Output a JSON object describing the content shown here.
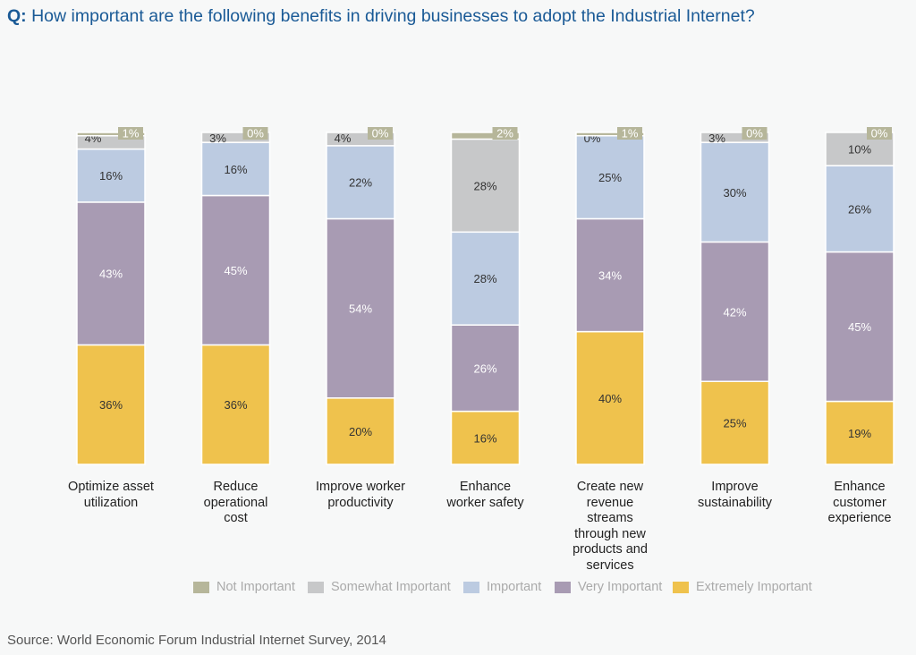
{
  "title": {
    "prefix": "Q:",
    "text": "How important are the following benefits in driving businesses to adopt the Industrial Internet?"
  },
  "source": "Source: World Economic Forum Industrial Internet Survey, 2014",
  "colors": {
    "Not Important": "#b6b69a",
    "Somewhat Important": "#c7c8c9",
    "Important": "#bccbe1",
    "Very Important": "#a89bb3",
    "Extremely Important": "#efc24d"
  },
  "chart_data": {
    "type": "bar",
    "stacked": true,
    "categories": [
      "Optimize asset utilization",
      "Reduce operational cost",
      "Improve worker productivity",
      "Enhance worker safety",
      "Create new revenue streams through new products and services",
      "Improve sustainability",
      "Enhance customer experience"
    ],
    "category_lines": [
      [
        "Optimize asset",
        "utilization"
      ],
      [
        "Reduce",
        "operational",
        "cost"
      ],
      [
        "Improve worker",
        "productivity"
      ],
      [
        "Enhance",
        "worker safety"
      ],
      [
        "Create new",
        "revenue",
        "streams",
        "through new",
        "products and",
        "services"
      ],
      [
        "Improve",
        "sustainability"
      ],
      [
        "Enhance",
        "customer",
        "experience"
      ]
    ],
    "series": [
      {
        "name": "Extremely Important",
        "values": [
          36,
          36,
          20,
          16,
          40,
          25,
          19
        ]
      },
      {
        "name": "Very Important",
        "values": [
          43,
          45,
          54,
          26,
          34,
          42,
          45
        ]
      },
      {
        "name": "Important",
        "values": [
          16,
          16,
          22,
          28,
          25,
          30,
          26
        ]
      },
      {
        "name": "Somewhat Important",
        "values": [
          4,
          3,
          4,
          28,
          0,
          3,
          10
        ]
      },
      {
        "name": "Not Important",
        "values": [
          1,
          0,
          0,
          2,
          1,
          0,
          0
        ]
      }
    ],
    "legend_order": [
      "Not Important",
      "Somewhat Important",
      "Important",
      "Very Important",
      "Extremely Important"
    ],
    "legend_position": "bottom",
    "ylim": [
      0,
      100
    ],
    "grid": false
  }
}
